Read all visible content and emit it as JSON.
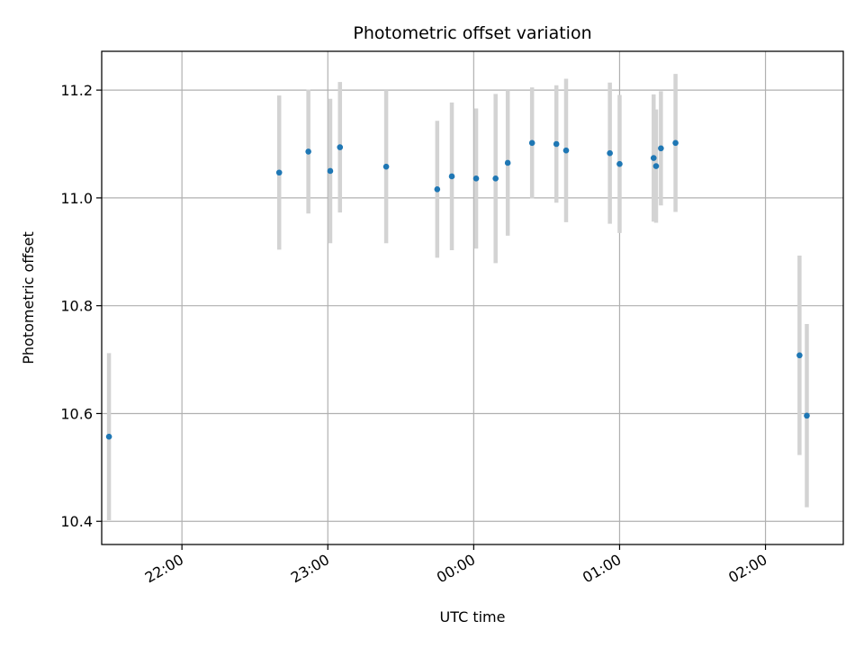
{
  "chart_data": {
    "type": "scatter",
    "title": "Photometric offset variation",
    "xlabel": "UTC time",
    "ylabel": "Photometric offset",
    "x_ticks": [
      "22:00",
      "23:00",
      "00:00",
      "01:00",
      "02:00"
    ],
    "y_ticks": [
      "10.4",
      "10.6",
      "10.8",
      "11.0",
      "11.2"
    ],
    "xlim": [
      "21:27",
      "02:32"
    ],
    "ylim": [
      10.357,
      11.272
    ],
    "grid": true,
    "colors": {
      "points": "#1f77b4",
      "errorbars": "#d3d3d3",
      "grid": "#b0b0b0"
    },
    "points": [
      {
        "x": "21:30",
        "y": 10.557,
        "err": 0.155
      },
      {
        "x": "22:40",
        "y": 11.047,
        "err": 0.143
      },
      {
        "x": "22:52",
        "y": 11.086,
        "err": 0.115
      },
      {
        "x": "23:01",
        "y": 11.05,
        "err": 0.134
      },
      {
        "x": "23:05",
        "y": 11.094,
        "err": 0.121
      },
      {
        "x": "23:24",
        "y": 11.058,
        "err": 0.142
      },
      {
        "x": "23:45",
        "y": 11.016,
        "err": 0.127
      },
      {
        "x": "23:51",
        "y": 11.04,
        "err": 0.137
      },
      {
        "x": "00:01",
        "y": 11.036,
        "err": 0.13
      },
      {
        "x": "00:09",
        "y": 11.036,
        "err": 0.157
      },
      {
        "x": "00:14",
        "y": 11.065,
        "err": 0.135
      },
      {
        "x": "00:24",
        "y": 11.102,
        "err": 0.103
      },
      {
        "x": "00:34",
        "y": 11.1,
        "err": 0.109
      },
      {
        "x": "00:38",
        "y": 11.088,
        "err": 0.133
      },
      {
        "x": "00:56",
        "y": 11.083,
        "err": 0.131
      },
      {
        "x": "01:00",
        "y": 11.063,
        "err": 0.128
      },
      {
        "x": "01:14",
        "y": 11.074,
        "err": 0.118
      },
      {
        "x": "01:15",
        "y": 11.059,
        "err": 0.105
      },
      {
        "x": "01:17",
        "y": 11.092,
        "err": 0.106
      },
      {
        "x": "01:23",
        "y": 11.102,
        "err": 0.128
      },
      {
        "x": "02:14",
        "y": 10.708,
        "err": 0.185
      },
      {
        "x": "02:17",
        "y": 10.596,
        "err": 0.17
      }
    ]
  }
}
